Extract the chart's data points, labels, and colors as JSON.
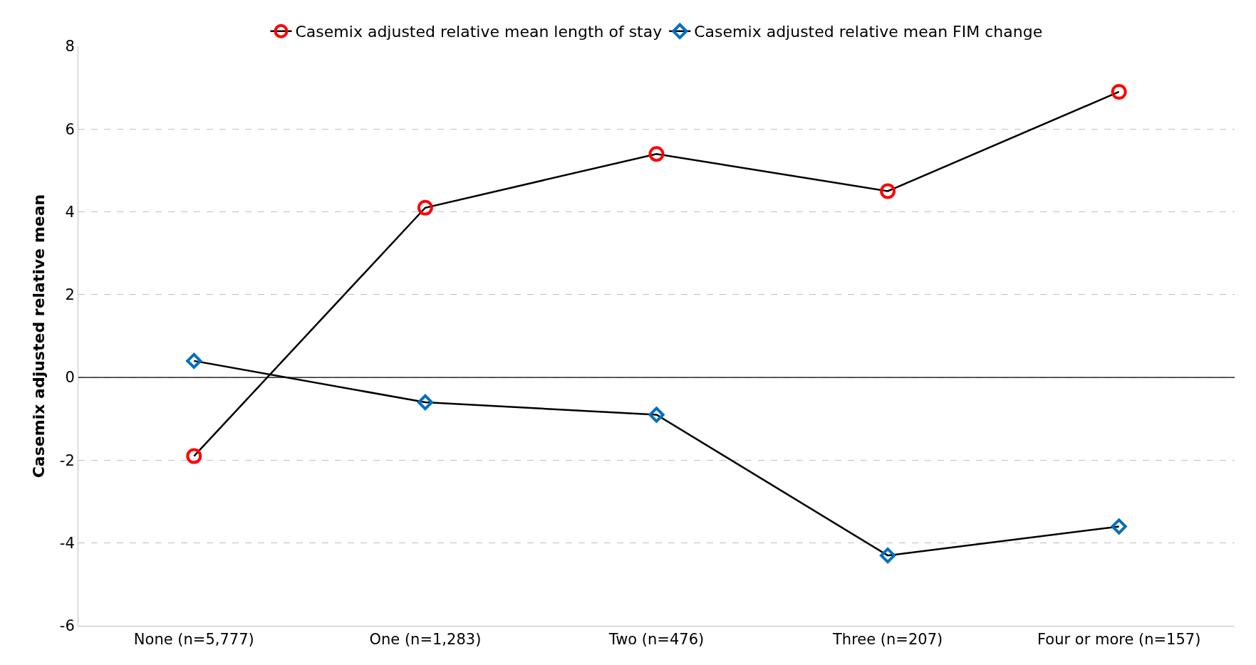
{
  "chart_data": {
    "type": "line",
    "ylabel": "Casemix adjusted relative mean",
    "categories": [
      "None (n=5,777)",
      "One (n=1,283)",
      "Two (n=476)",
      "Three (n=207)",
      "Four or more (n=157)"
    ],
    "series": [
      {
        "name": "Casemix adjusted relative mean length of stay",
        "color": "#ff0000",
        "marker": "circle",
        "values": [
          -1.9,
          4.1,
          5.4,
          4.5,
          6.9
        ]
      },
      {
        "name": "Casemix adjusted relative mean FIM change",
        "color": "#0070c0",
        "marker": "diamond",
        "values": [
          0.4,
          -0.6,
          -0.9,
          -4.3,
          -3.6
        ]
      }
    ],
    "ylim": [
      -6,
      8
    ],
    "yticks": [
      -6,
      -4,
      -2,
      0,
      2,
      4,
      6,
      8
    ],
    "grid": "y",
    "legend": "top",
    "line_style": "solid",
    "ref_lines": [
      {
        "axis": "y",
        "value": 0,
        "color": "#000000"
      }
    ]
  }
}
